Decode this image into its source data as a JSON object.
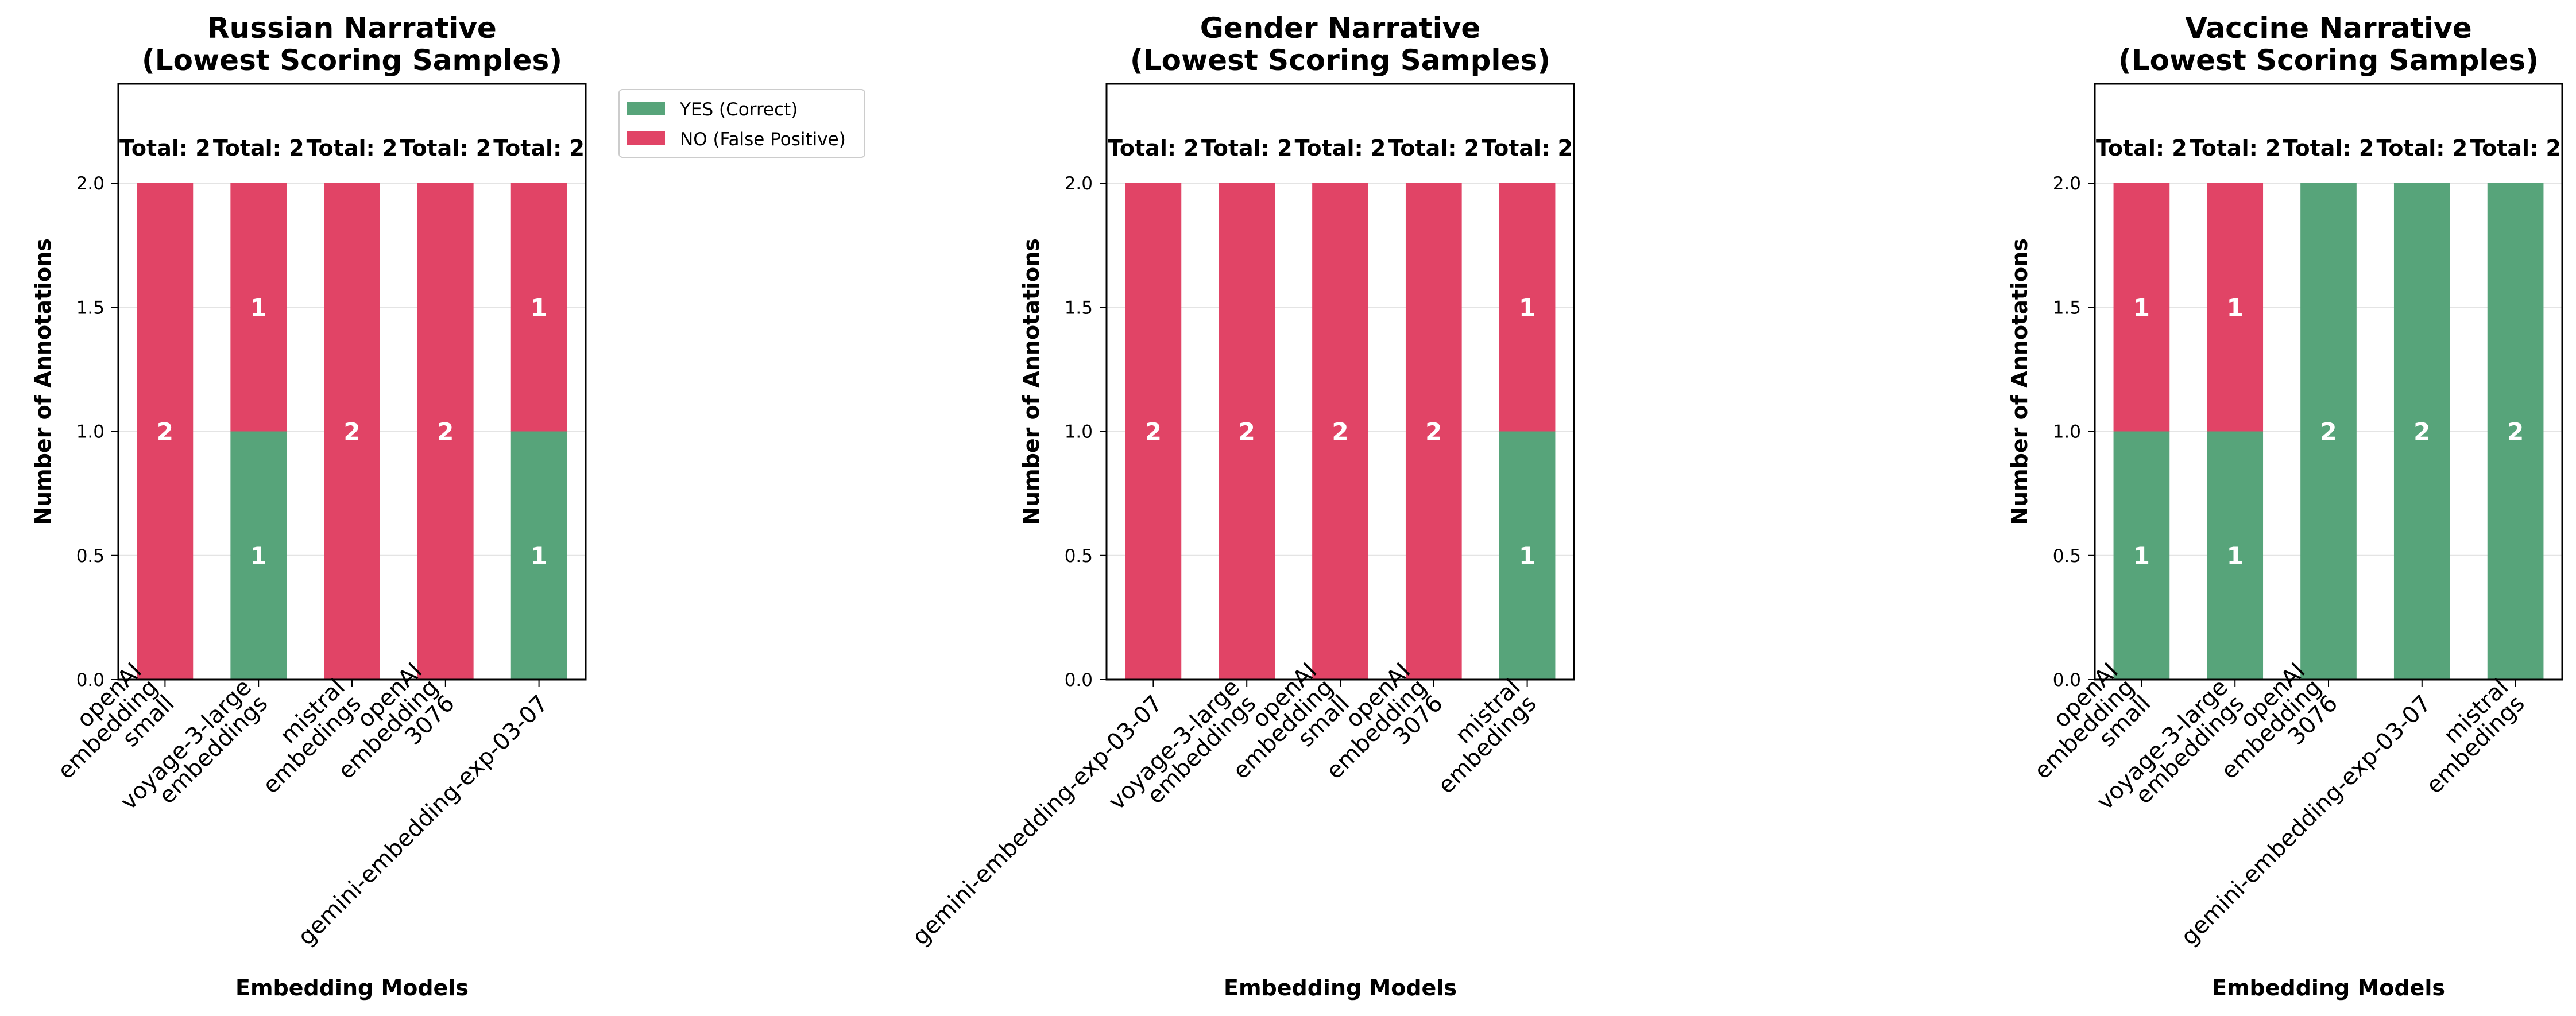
{
  "colors": {
    "yes": "#57a47a",
    "no": "#e14466"
  },
  "legend": {
    "placement": "outside-upper-right",
    "entries": [
      "YES (Correct)",
      "NO (False Positive)"
    ]
  },
  "chart_data": [
    {
      "type": "bar",
      "stacked": true,
      "title": "Russian Narrative\n(Lowest Scoring Samples)",
      "xlabel": "Embedding Models",
      "ylabel": "Number of Annotations",
      "ylim": [
        0,
        2.4
      ],
      "yticks": [
        "0.0",
        "0.5",
        "1.0",
        "1.5",
        "2.0"
      ],
      "grid": true,
      "categories": [
        "openAI\nembedding\nsmall",
        "voyage-3-large\nembeddings",
        "mistral\nembedings",
        "openAI\nembedding\n3076",
        "gemini-embedding-exp-03-07"
      ],
      "series": [
        {
          "name": "YES (Correct)",
          "values": [
            0,
            1,
            0,
            0,
            1
          ]
        },
        {
          "name": "NO (False Positive)",
          "values": [
            2,
            1,
            2,
            2,
            1
          ]
        }
      ],
      "totals": [
        "Total: 2",
        "Total: 2",
        "Total: 2",
        "Total: 2",
        "Total: 2"
      ]
    },
    {
      "type": "bar",
      "stacked": true,
      "title": "Gender Narrative\n(Lowest Scoring Samples)",
      "xlabel": "Embedding Models",
      "ylabel": "Number of Annotations",
      "ylim": [
        0,
        2.4
      ],
      "yticks": [
        "0.0",
        "0.5",
        "1.0",
        "1.5",
        "2.0"
      ],
      "grid": true,
      "categories": [
        "gemini-embedding-exp-03-07",
        "voyage-3-large\nembeddings",
        "openAI\nembedding\nsmall",
        "openAI\nembedding\n3076",
        "mistral\nembedings"
      ],
      "series": [
        {
          "name": "YES (Correct)",
          "values": [
            0,
            0,
            0,
            0,
            1
          ]
        },
        {
          "name": "NO (False Positive)",
          "values": [
            2,
            2,
            2,
            2,
            1
          ]
        }
      ],
      "totals": [
        "Total: 2",
        "Total: 2",
        "Total: 2",
        "Total: 2",
        "Total: 2"
      ]
    },
    {
      "type": "bar",
      "stacked": true,
      "title": "Vaccine Narrative\n(Lowest Scoring Samples)",
      "xlabel": "Embedding Models",
      "ylabel": "Number of Annotations",
      "ylim": [
        0,
        2.4
      ],
      "yticks": [
        "0.0",
        "0.5",
        "1.0",
        "1.5",
        "2.0"
      ],
      "grid": true,
      "categories": [
        "openAI\nembedding\nsmall",
        "voyage-3-large\nembeddings",
        "openAI\nembedding\n3076",
        "gemini-embedding-exp-03-07",
        "mistral\nembedings"
      ],
      "series": [
        {
          "name": "YES (Correct)",
          "values": [
            1,
            1,
            2,
            2,
            2
          ]
        },
        {
          "name": "NO (False Positive)",
          "values": [
            1,
            1,
            0,
            0,
            0
          ]
        }
      ],
      "totals": [
        "Total: 2",
        "Total: 2",
        "Total: 2",
        "Total: 2",
        "Total: 2"
      ]
    }
  ]
}
